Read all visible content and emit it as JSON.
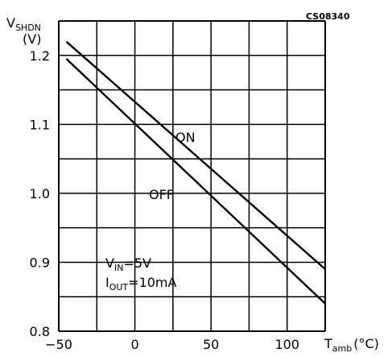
{
  "figure_code": "CS08340",
  "chart_data": {
    "type": "line",
    "xlabel": {
      "main": "T",
      "sub": "amb",
      "unit": "(°C)"
    },
    "ylabel": {
      "main": "V",
      "sub": "SHDN",
      "unit": "(V)"
    },
    "xlim": [
      -50,
      125
    ],
    "ylim": [
      0.8,
      1.25
    ],
    "x_ticks": [
      -50,
      0,
      50,
      100
    ],
    "x_tick_labels": [
      "−50",
      "0",
      "50",
      "100"
    ],
    "y_ticks": [
      0.8,
      0.9,
      1.0,
      1.1,
      1.2
    ],
    "y_tick_labels": [
      "0.8",
      "0.9",
      "1.0",
      "1.1",
      "1.2"
    ],
    "x_grid": [
      -50,
      -25,
      0,
      25,
      50,
      75,
      100,
      125
    ],
    "y_grid": [
      0.8,
      0.85,
      0.9,
      0.95,
      1.0,
      1.05,
      1.1,
      1.15,
      1.2,
      1.25
    ],
    "grid": true,
    "series": [
      {
        "name": "ON",
        "x": [
          -45,
          125
        ],
        "y": [
          1.22,
          0.89
        ]
      },
      {
        "name": "OFF",
        "x": [
          -45,
          125
        ],
        "y": [
          1.195,
          0.84
        ]
      }
    ],
    "annotations": {
      "conditions": [
        {
          "main": "V",
          "sub": "IN",
          "rest": "=5V"
        },
        {
          "main": "I",
          "sub": "OUT",
          "rest": "=10mA"
        }
      ]
    }
  }
}
